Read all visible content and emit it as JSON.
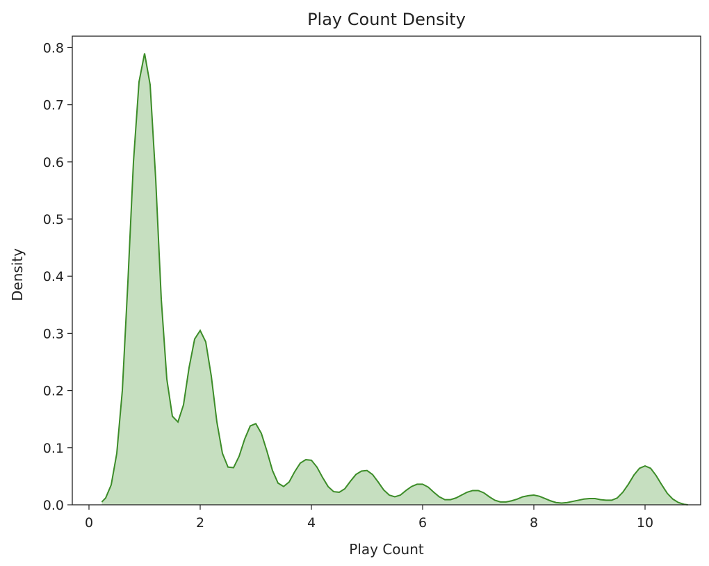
{
  "chart_data": {
    "type": "area",
    "title": "Play Count Density",
    "xlabel": "Play Count",
    "ylabel": "Density",
    "xlim": [
      -0.3,
      11.0
    ],
    "ylim": [
      0,
      0.82
    ],
    "xticks": [
      0,
      2,
      4,
      6,
      8,
      10
    ],
    "yticks": [
      0.0,
      0.1,
      0.2,
      0.3,
      0.4,
      0.5,
      0.6,
      0.7,
      0.8
    ],
    "grid": false,
    "colors": {
      "line": "#3c8c28",
      "fill": "#c6dfc0",
      "axis": "#222222"
    },
    "series": [
      {
        "x": [
          0.23,
          0.3,
          0.4,
          0.5,
          0.6,
          0.7,
          0.8,
          0.9,
          1.0,
          1.1,
          1.2,
          1.3,
          1.4,
          1.5,
          1.6,
          1.7,
          1.8,
          1.9,
          2.0,
          2.1,
          2.2,
          2.3,
          2.4,
          2.5,
          2.6,
          2.7,
          2.8,
          2.9,
          3.0,
          3.1,
          3.2,
          3.3,
          3.4,
          3.5,
          3.6,
          3.7,
          3.8,
          3.9,
          4.0,
          4.1,
          4.2,
          4.3,
          4.4,
          4.5,
          4.6,
          4.7,
          4.8,
          4.9,
          5.0,
          5.1,
          5.2,
          5.3,
          5.4,
          5.5,
          5.6,
          5.7,
          5.8,
          5.9,
          6.0,
          6.1,
          6.2,
          6.3,
          6.4,
          6.5,
          6.6,
          6.7,
          6.8,
          6.9,
          7.0,
          7.1,
          7.2,
          7.3,
          7.4,
          7.5,
          7.6,
          7.7,
          7.8,
          7.9,
          8.0,
          8.1,
          8.2,
          8.3,
          8.4,
          8.5,
          8.6,
          8.7,
          8.8,
          8.9,
          9.0,
          9.1,
          9.2,
          9.3,
          9.4,
          9.5,
          9.6,
          9.7,
          9.8,
          9.9,
          10.0,
          10.1,
          10.2,
          10.3,
          10.4,
          10.5,
          10.6,
          10.7,
          10.77
        ],
        "y": [
          0.005,
          0.012,
          0.035,
          0.09,
          0.2,
          0.39,
          0.6,
          0.74,
          0.79,
          0.735,
          0.57,
          0.36,
          0.22,
          0.155,
          0.145,
          0.175,
          0.24,
          0.29,
          0.305,
          0.285,
          0.225,
          0.145,
          0.09,
          0.066,
          0.065,
          0.085,
          0.115,
          0.138,
          0.142,
          0.125,
          0.094,
          0.06,
          0.038,
          0.032,
          0.04,
          0.058,
          0.073,
          0.079,
          0.078,
          0.066,
          0.048,
          0.032,
          0.023,
          0.022,
          0.028,
          0.041,
          0.053,
          0.059,
          0.06,
          0.053,
          0.04,
          0.026,
          0.017,
          0.014,
          0.017,
          0.025,
          0.032,
          0.036,
          0.036,
          0.031,
          0.022,
          0.014,
          0.009,
          0.009,
          0.012,
          0.017,
          0.022,
          0.025,
          0.025,
          0.021,
          0.014,
          0.008,
          0.005,
          0.005,
          0.007,
          0.01,
          0.014,
          0.016,
          0.017,
          0.015,
          0.011,
          0.007,
          0.004,
          0.003,
          0.004,
          0.006,
          0.008,
          0.01,
          0.011,
          0.011,
          0.009,
          0.008,
          0.008,
          0.012,
          0.022,
          0.036,
          0.052,
          0.064,
          0.068,
          0.064,
          0.051,
          0.035,
          0.02,
          0.01,
          0.004,
          0.001,
          0.0
        ]
      }
    ]
  }
}
